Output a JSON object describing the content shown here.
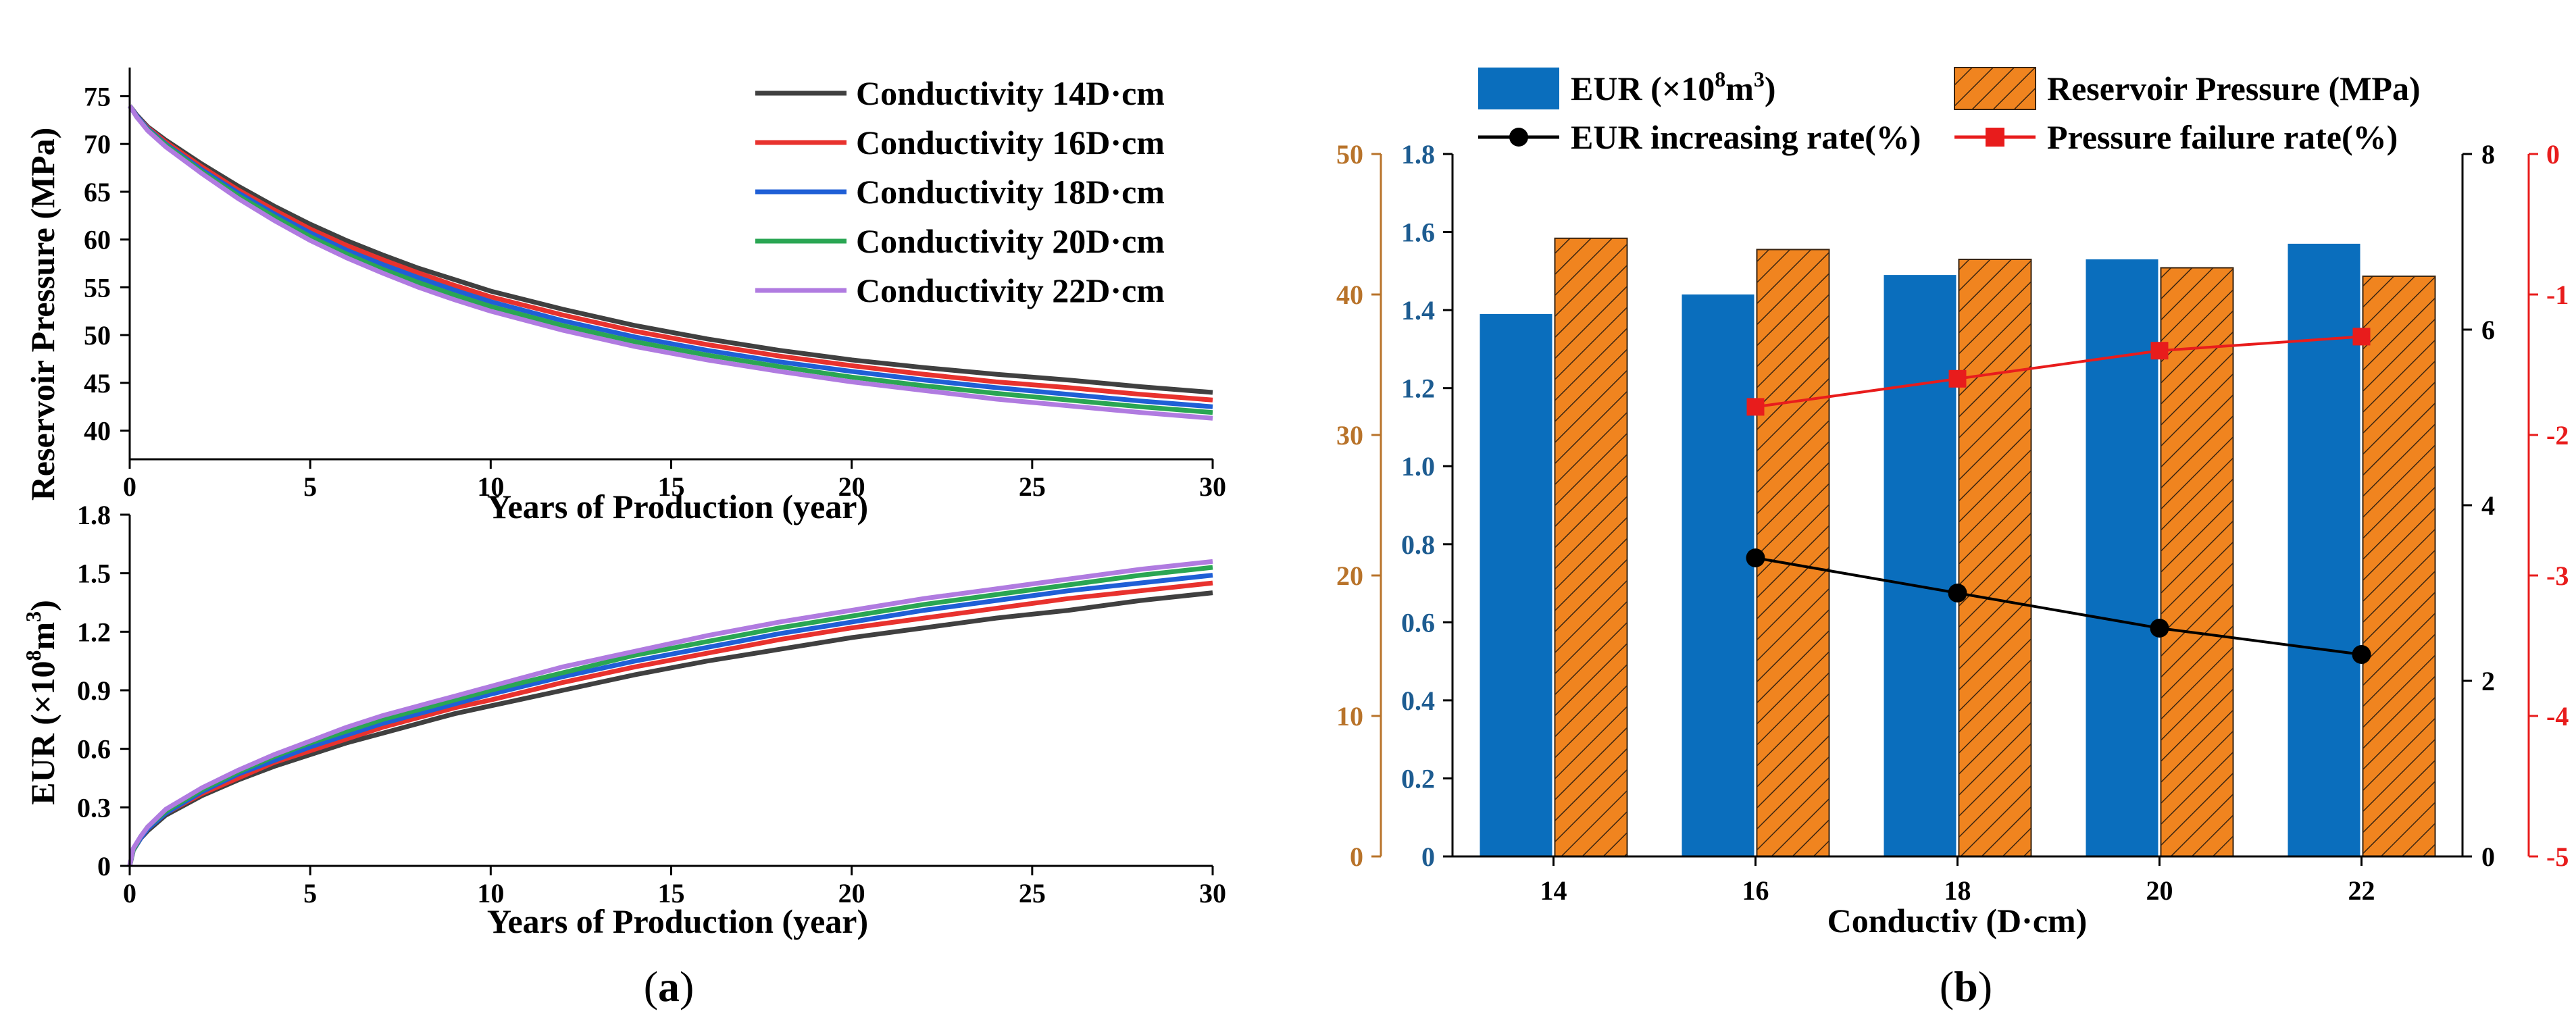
{
  "chart_data": [
    {
      "type": "line",
      "panel": "a-top",
      "xlabel": "Years of Production (year)",
      "ylabel": "Reservoir Pressure (MPa)",
      "xlim": [
        0,
        30
      ],
      "ylim": [
        37,
        78
      ],
      "xticks": [
        "0",
        "5",
        "10",
        "15",
        "20",
        "25",
        "30"
      ],
      "yticks": [
        "40",
        "45",
        "50",
        "55",
        "60",
        "65",
        "70",
        "75"
      ],
      "x": [
        0,
        0.2,
        0.5,
        1,
        2,
        3,
        4,
        5,
        6,
        7,
        8,
        9,
        10,
        12,
        14,
        16,
        18,
        20,
        22,
        24,
        26,
        28,
        30
      ],
      "series": [
        {
          "name": "Conductivity 14D·cm",
          "color": "#404040",
          "values": [
            74,
            73.0,
            71.8,
            70.4,
            67.9,
            65.6,
            63.5,
            61.6,
            59.9,
            58.4,
            57.0,
            55.8,
            54.6,
            52.7,
            51.0,
            49.6,
            48.4,
            47.4,
            46.6,
            45.9,
            45.3,
            44.6,
            44.0
          ]
        },
        {
          "name": "Conductivity 16D·cm",
          "color": "#e8322e",
          "values": [
            74,
            72.9,
            71.7,
            70.2,
            67.6,
            65.2,
            63.1,
            61.1,
            59.4,
            57.9,
            56.5,
            55.2,
            54.0,
            52.1,
            50.4,
            49.0,
            47.8,
            46.8,
            45.9,
            45.1,
            44.5,
            43.8,
            43.2
          ]
        },
        {
          "name": "Conductivity 18D·cm",
          "color": "#1f5fd6",
          "values": [
            74,
            72.9,
            71.6,
            70.0,
            67.3,
            64.9,
            62.7,
            60.7,
            58.9,
            57.4,
            56.0,
            54.7,
            53.5,
            51.5,
            49.8,
            48.4,
            47.2,
            46.2,
            45.3,
            44.5,
            43.8,
            43.1,
            42.5
          ]
        },
        {
          "name": "Conductivity 20D·cm",
          "color": "#2aa653",
          "values": [
            74,
            72.8,
            71.5,
            69.9,
            67.1,
            64.6,
            62.4,
            60.3,
            58.5,
            56.9,
            55.5,
            54.2,
            53.0,
            51.0,
            49.3,
            47.9,
            46.7,
            45.6,
            44.7,
            43.9,
            43.2,
            42.5,
            41.9
          ]
        },
        {
          "name": "Conductivity 22D·cm",
          "color": "#b07be0",
          "values": [
            74,
            72.8,
            71.4,
            69.7,
            66.9,
            64.3,
            62.0,
            59.9,
            58.1,
            56.5,
            55.0,
            53.7,
            52.5,
            50.5,
            48.8,
            47.4,
            46.2,
            45.1,
            44.2,
            43.3,
            42.6,
            41.9,
            41.3
          ]
        }
      ]
    },
    {
      "type": "line",
      "panel": "a-bottom",
      "xlabel": "Years of Production (year)",
      "ylabel_main": "EUR (×10",
      "ylabel_exp1": "8",
      "ylabel_mid": "m",
      "ylabel_exp2": "3",
      "ylabel_end": ")",
      "xlim": [
        0,
        30
      ],
      "ylim": [
        0,
        1.8
      ],
      "xticks": [
        "0",
        "5",
        "10",
        "15",
        "20",
        "25",
        "30"
      ],
      "yticks": [
        "0",
        "0.3",
        "0.6",
        "0.9",
        "1.2",
        "1.5",
        "1.8"
      ],
      "x": [
        0,
        0.1,
        0.3,
        0.5,
        1,
        2,
        3,
        4,
        5,
        6,
        7,
        8,
        9,
        10,
        12,
        14,
        16,
        18,
        20,
        22,
        24,
        26,
        28,
        30
      ],
      "series": [
        {
          "name": "Conductivity 14D·cm",
          "color": "#404040",
          "values": [
            0,
            0.08,
            0.14,
            0.18,
            0.26,
            0.36,
            0.44,
            0.51,
            0.57,
            0.63,
            0.68,
            0.73,
            0.78,
            0.82,
            0.9,
            0.98,
            1.05,
            1.11,
            1.17,
            1.22,
            1.27,
            1.31,
            1.36,
            1.4
          ]
        },
        {
          "name": "Conductivity 16D·cm",
          "color": "#e8322e",
          "values": [
            0,
            0.08,
            0.14,
            0.19,
            0.27,
            0.37,
            0.45,
            0.53,
            0.59,
            0.65,
            0.71,
            0.76,
            0.81,
            0.85,
            0.94,
            1.02,
            1.09,
            1.16,
            1.22,
            1.27,
            1.32,
            1.37,
            1.41,
            1.45
          ]
        },
        {
          "name": "Conductivity 18D·cm",
          "color": "#1f5fd6",
          "values": [
            0,
            0.08,
            0.14,
            0.19,
            0.27,
            0.38,
            0.47,
            0.54,
            0.61,
            0.67,
            0.73,
            0.78,
            0.83,
            0.88,
            0.97,
            1.05,
            1.12,
            1.19,
            1.25,
            1.31,
            1.36,
            1.41,
            1.45,
            1.49
          ]
        },
        {
          "name": "Conductivity 20D·cm",
          "color": "#2aa653",
          "values": [
            0,
            0.08,
            0.15,
            0.2,
            0.28,
            0.39,
            0.48,
            0.56,
            0.63,
            0.69,
            0.75,
            0.8,
            0.85,
            0.9,
            0.99,
            1.08,
            1.15,
            1.22,
            1.28,
            1.34,
            1.39,
            1.44,
            1.49,
            1.53
          ]
        },
        {
          "name": "Conductivity 22D·cm",
          "color": "#b07be0",
          "values": [
            0,
            0.09,
            0.15,
            0.2,
            0.29,
            0.4,
            0.49,
            0.57,
            0.64,
            0.71,
            0.77,
            0.82,
            0.87,
            0.92,
            1.02,
            1.1,
            1.18,
            1.25,
            1.31,
            1.37,
            1.42,
            1.47,
            1.52,
            1.56
          ]
        }
      ]
    },
    {
      "type": "bar",
      "panel": "b",
      "xlabel": "Conductiv (D·cm)",
      "categories": [
        "14",
        "16",
        "18",
        "20",
        "22"
      ],
      "series": [
        {
          "name_main": "EUR (×10",
          "name_exp1": "8",
          "name_mid": "m",
          "name_exp2": "3",
          "name_end": ")",
          "color": "#0a6ebd",
          "axis": "left-inner",
          "values": [
            1.39,
            1.44,
            1.49,
            1.53,
            1.57
          ]
        },
        {
          "name": "Reservoir Pressure (MPa)",
          "color": "#f0841f",
          "hatch": true,
          "axis": "left-outer",
          "values": [
            44.0,
            43.2,
            42.5,
            41.9,
            41.3
          ]
        }
      ],
      "line_series": [
        {
          "name": "EUR increasing rate(%)",
          "color": "#000000",
          "axis": "right-inner",
          "x": [
            "16",
            "18",
            "20",
            "22"
          ],
          "values": [
            3.4,
            3.0,
            2.6,
            2.3
          ]
        },
        {
          "name": "Pressure failure rate(%)",
          "color": "#e81c1c",
          "axis": "right-outer",
          "x": [
            "16",
            "18",
            "20",
            "22"
          ],
          "values": [
            -1.8,
            -1.6,
            -1.4,
            -1.3
          ]
        }
      ],
      "axes": {
        "left_outer": {
          "ylim": [
            0,
            50
          ],
          "ticks": [
            "0",
            "10",
            "20",
            "30",
            "40",
            "50"
          ],
          "color": "#b8732a"
        },
        "left_inner": {
          "ylim": [
            0,
            1.8
          ],
          "ticks": [
            "0",
            "0.2",
            "0.4",
            "0.6",
            "0.8",
            "1.0",
            "1.2",
            "1.4",
            "1.6",
            "1.8"
          ],
          "color": "#1d5c91"
        },
        "right_inner": {
          "ylim": [
            0,
            8
          ],
          "ticks": [
            "0",
            "2",
            "4",
            "6",
            "8"
          ],
          "color": "#000000"
        },
        "right_outer": {
          "ylim": [
            -5,
            0
          ],
          "ticks": [
            "-5",
            "-4",
            "-3",
            "-2",
            "-1",
            "0"
          ],
          "color": "#e81c1c"
        }
      }
    }
  ],
  "captions": {
    "a": "(a)",
    "b": "(b)"
  },
  "caption_letters": {
    "a": "a",
    "b": "b"
  }
}
